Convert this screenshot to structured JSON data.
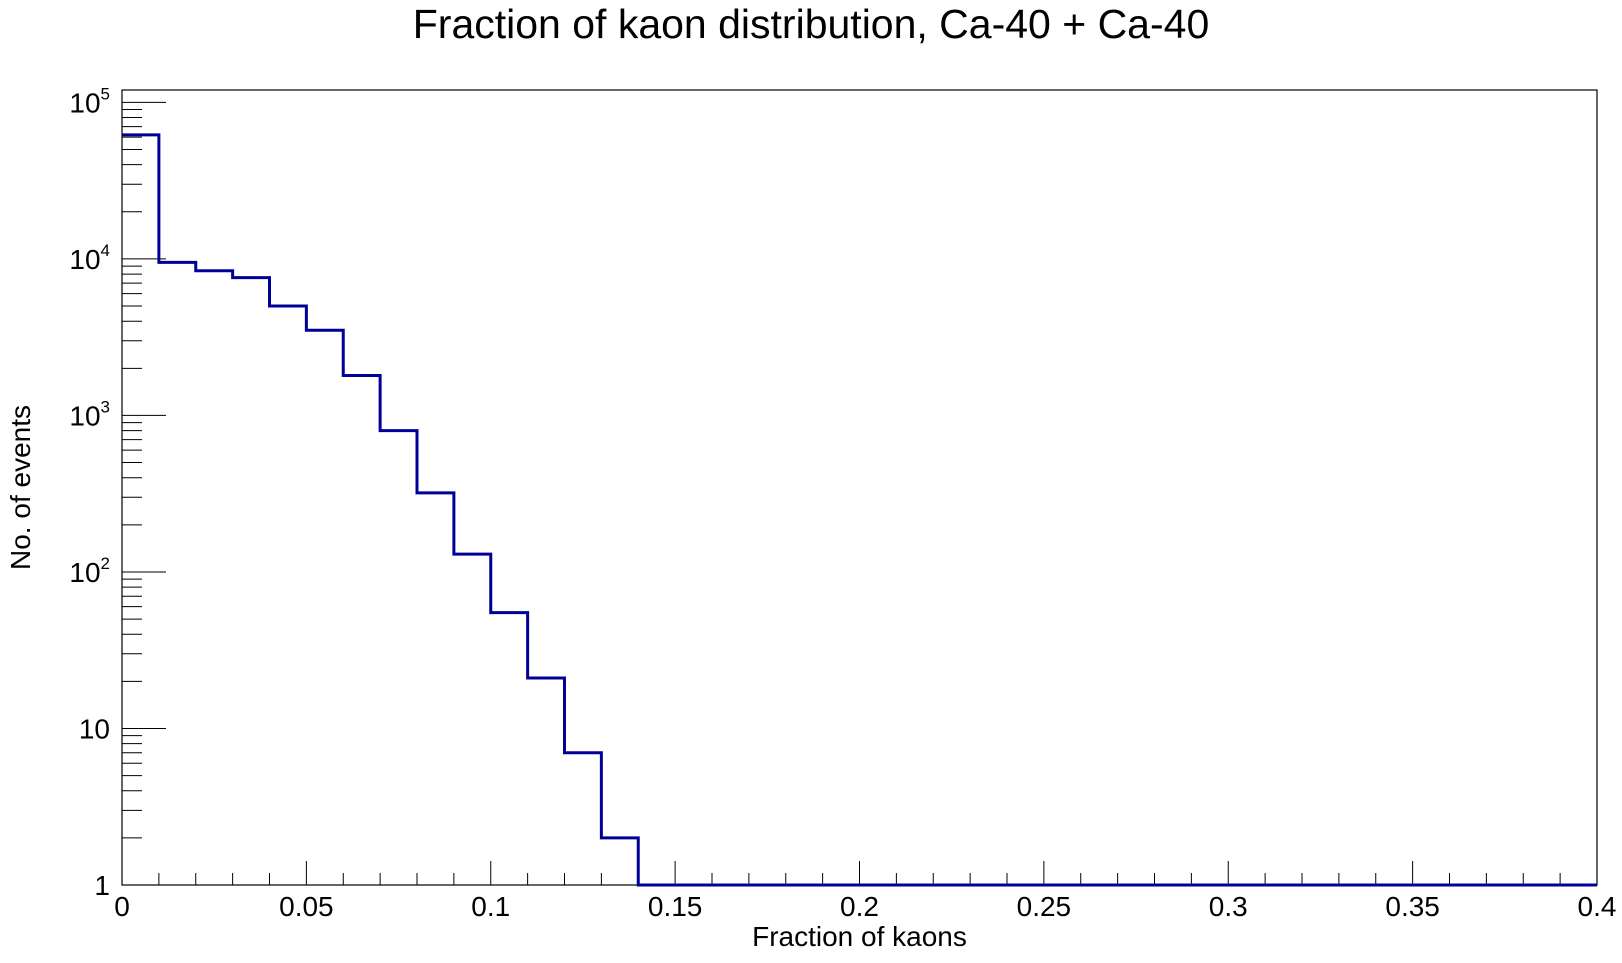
{
  "chart_data": {
    "type": "histogram",
    "title": "Fraction of kaon distribution, Ca-40 + Ca-40",
    "xlabel": "Fraction of kaons",
    "ylabel": "No. of events",
    "xlim": [
      0,
      0.4
    ],
    "ylim": [
      1,
      120000
    ],
    "yscale": "log",
    "grid": false,
    "legend": "none",
    "line_color": "#000099",
    "x_ticks": [
      {
        "value": 0,
        "label": "0"
      },
      {
        "value": 0.05,
        "label": "0.05"
      },
      {
        "value": 0.1,
        "label": "0.1"
      },
      {
        "value": 0.15,
        "label": "0.15"
      },
      {
        "value": 0.2,
        "label": "0.2"
      },
      {
        "value": 0.25,
        "label": "0.25"
      },
      {
        "value": 0.3,
        "label": "0.3"
      },
      {
        "value": 0.35,
        "label": "0.35"
      },
      {
        "value": 0.4,
        "label": "0.4"
      }
    ],
    "y_ticks": [
      {
        "value": 1,
        "base": "1",
        "exp": ""
      },
      {
        "value": 10,
        "base": "10",
        "exp": ""
      },
      {
        "value": 100,
        "base": "10",
        "exp": "2"
      },
      {
        "value": 1000,
        "base": "10",
        "exp": "3"
      },
      {
        "value": 10000,
        "base": "10",
        "exp": "4"
      },
      {
        "value": 100000,
        "base": "10",
        "exp": "5"
      }
    ],
    "bin_edges": [
      0,
      0.01,
      0.02,
      0.03,
      0.04,
      0.05,
      0.06,
      0.07,
      0.08,
      0.09,
      0.1,
      0.11,
      0.12,
      0.13,
      0.14,
      0.4
    ],
    "counts": [
      62000,
      9500,
      8400,
      7600,
      5000,
      3500,
      1800,
      800,
      320,
      130,
      55,
      21,
      7,
      2,
      1
    ]
  }
}
